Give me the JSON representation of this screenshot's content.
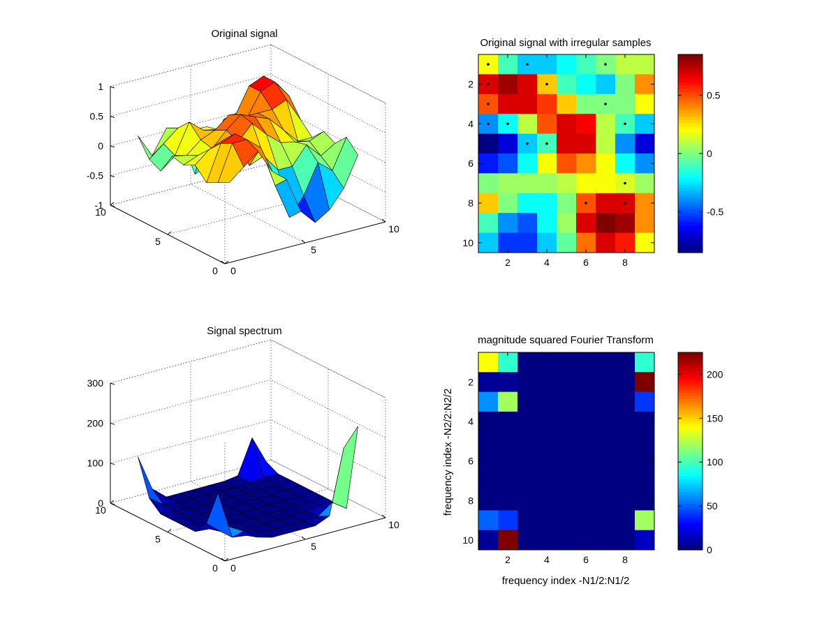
{
  "chart_data": [
    {
      "type": "surface",
      "title": "Original signal",
      "xlim": [
        0,
        10
      ],
      "ylim": [
        0,
        10
      ],
      "zlim": [
        -1,
        1
      ],
      "x_ticks": [
        "0",
        "5",
        "10"
      ],
      "y_ticks": [
        "0",
        "5",
        "10"
      ],
      "z_ticks": [
        "-1",
        "-0.5",
        "0",
        "0.5",
        "1"
      ],
      "grid": true,
      "colormap": "jet",
      "mesh_size": [
        10,
        9
      ],
      "z_values": [
        [
          0.2,
          0.4,
          0.6,
          0.2,
          0.0,
          -0.6,
          -0.85,
          -0.7,
          -0.4,
          0.1
        ],
        [
          0.1,
          0.7,
          0.7,
          0.5,
          -0.2,
          -0.8,
          -0.5,
          0.0,
          -0.2,
          0.3
        ],
        [
          0.0,
          0.6,
          0.7,
          0.1,
          0.2,
          -0.1,
          -0.1,
          0.2,
          -0.05,
          0.1
        ],
        [
          0.2,
          0.4,
          0.5,
          0.4,
          0.65,
          0.4,
          0.2,
          0.15,
          0.1,
          0.2
        ],
        [
          0.1,
          0.2,
          0.25,
          0.5,
          0.7,
          0.6,
          0.5,
          0.25,
          0.0,
          0.0
        ],
        [
          0.15,
          0.1,
          0.3,
          0.4,
          0.6,
          0.5,
          0.5,
          0.5,
          0.6,
          0.2
        ],
        [
          -0.2,
          0.0,
          0.5,
          0.3,
          0.25,
          0.0,
          0.3,
          0.7,
          0.8,
          0.5
        ],
        [
          -0.1,
          0.1,
          0.3,
          0.2,
          0.2,
          0.0,
          0.25,
          0.7,
          0.8,
          0.6
        ],
        [
          0.2,
          -0.2,
          0.2,
          0.0,
          -0.7,
          -0.6,
          0.1,
          0.15,
          0.25,
          0.2
        ]
      ]
    },
    {
      "type": "heatmap",
      "title": "Original signal with irregular samples",
      "x_ticks": [
        "2",
        "4",
        "6",
        "8"
      ],
      "y_ticks": [
        "2",
        "4",
        "6",
        "8",
        "10"
      ],
      "colorbar_ticks": [
        "-0.5",
        "0",
        "0.5"
      ],
      "clim": [
        -0.85,
        0.85
      ],
      "colormap": "jet",
      "values": [
        [
          0.2,
          -0.1,
          -0.3,
          -0.3,
          -0.2,
          -0.1,
          0.0,
          0.1,
          0.1
        ],
        [
          0.7,
          0.8,
          0.7,
          0.3,
          -0.1,
          -0.2,
          -0.3,
          0.0,
          0.4
        ],
        [
          0.5,
          0.7,
          0.7,
          0.55,
          0.3,
          0.0,
          0.0,
          0.0,
          0.2
        ],
        [
          -0.4,
          -0.2,
          0.1,
          0.5,
          0.7,
          0.65,
          0.1,
          -0.1,
          -0.3
        ],
        [
          -0.85,
          -0.7,
          -0.3,
          -0.1,
          0.7,
          0.7,
          0.1,
          -0.4,
          -0.7
        ],
        [
          -0.6,
          -0.5,
          -0.2,
          0.2,
          0.5,
          0.4,
          0.2,
          -0.2,
          -0.4
        ],
        [
          0.0,
          0.05,
          0.05,
          0.05,
          0.1,
          0.2,
          0.2,
          0.15,
          0.05
        ],
        [
          0.3,
          0.0,
          -0.2,
          -0.2,
          0.0,
          0.5,
          0.7,
          0.7,
          0.4
        ],
        [
          -0.1,
          -0.4,
          -0.5,
          -0.2,
          0.05,
          0.7,
          0.85,
          0.8,
          0.4
        ],
        [
          -0.3,
          -0.55,
          -0.55,
          -0.3,
          -0.05,
          0.45,
          0.7,
          0.6,
          0.2
        ]
      ],
      "sample_points": [
        [
          1,
          1
        ],
        [
          3,
          1
        ],
        [
          7,
          1
        ],
        [
          1,
          2
        ],
        [
          4,
          2
        ],
        [
          1,
          3
        ],
        [
          7,
          3
        ],
        [
          1,
          4
        ],
        [
          2,
          4
        ],
        [
          8,
          4
        ],
        [
          3,
          5
        ],
        [
          4,
          5
        ],
        [
          8,
          7
        ],
        [
          6,
          8
        ],
        [
          8,
          8
        ]
      ]
    },
    {
      "type": "surface",
      "title": "Signal spectrum",
      "xlim": [
        0,
        10
      ],
      "ylim": [
        0,
        10
      ],
      "zlim": [
        0,
        300
      ],
      "x_ticks": [
        "0",
        "5",
        "10"
      ],
      "y_ticks": [
        "0",
        "5",
        "10"
      ],
      "z_ticks": [
        "0",
        "100",
        "200",
        "300"
      ],
      "grid": true,
      "colormap": "jet",
      "clim": [
        0,
        225
      ],
      "mesh_size": [
        10,
        9
      ],
      "z_values": [
        [
          60,
          40,
          15,
          5,
          5,
          5,
          5,
          20,
          180,
          225
        ],
        [
          130,
          10,
          5,
          2,
          2,
          2,
          2,
          5,
          30,
          5
        ],
        [
          40,
          10,
          2,
          0,
          0,
          0,
          0,
          2,
          10,
          5
        ],
        [
          5,
          2,
          0,
          0,
          0,
          0,
          0,
          0,
          2,
          5
        ],
        [
          5,
          2,
          0,
          0,
          0,
          0,
          0,
          0,
          2,
          5
        ],
        [
          5,
          2,
          0,
          0,
          0,
          0,
          0,
          0,
          2,
          5
        ],
        [
          5,
          2,
          0,
          0,
          0,
          0,
          0,
          0,
          2,
          5
        ],
        [
          30,
          5,
          0,
          0,
          0,
          0,
          0,
          2,
          5,
          5
        ],
        [
          120,
          30,
          0,
          0,
          0,
          0,
          0,
          5,
          90,
          20
        ]
      ]
    },
    {
      "type": "heatmap",
      "title": "magnitude squared Fourier Transform",
      "xlabel": "frequency index -N1/2:N1/2",
      "ylabel": "frequency index -N2/2:N2/2",
      "x_ticks": [
        "2",
        "4",
        "6",
        "8"
      ],
      "y_ticks": [
        "2",
        "4",
        "6",
        "8",
        "10"
      ],
      "colorbar_ticks": [
        "0",
        "50",
        "100",
        "150",
        "200"
      ],
      "clim": [
        0,
        225
      ],
      "colormap": "jet",
      "values": [
        [
          140,
          95,
          0,
          0,
          0,
          0,
          0,
          0,
          95
        ],
        [
          5,
          5,
          0,
          0,
          0,
          0,
          0,
          0,
          225
        ],
        [
          60,
          120,
          0,
          0,
          0,
          0,
          0,
          0,
          40
        ],
        [
          0,
          0,
          0,
          0,
          0,
          0,
          0,
          0,
          0
        ],
        [
          0,
          0,
          0,
          0,
          0,
          0,
          0,
          0,
          0
        ],
        [
          0,
          0,
          0,
          0,
          0,
          0,
          0,
          0,
          0
        ],
        [
          0,
          0,
          0,
          0,
          0,
          0,
          0,
          0,
          0
        ],
        [
          0,
          0,
          0,
          0,
          0,
          0,
          0,
          0,
          0
        ],
        [
          50,
          40,
          0,
          0,
          0,
          0,
          0,
          0,
          120
        ],
        [
          5,
          225,
          0,
          0,
          0,
          0,
          0,
          0,
          15
        ]
      ]
    }
  ]
}
